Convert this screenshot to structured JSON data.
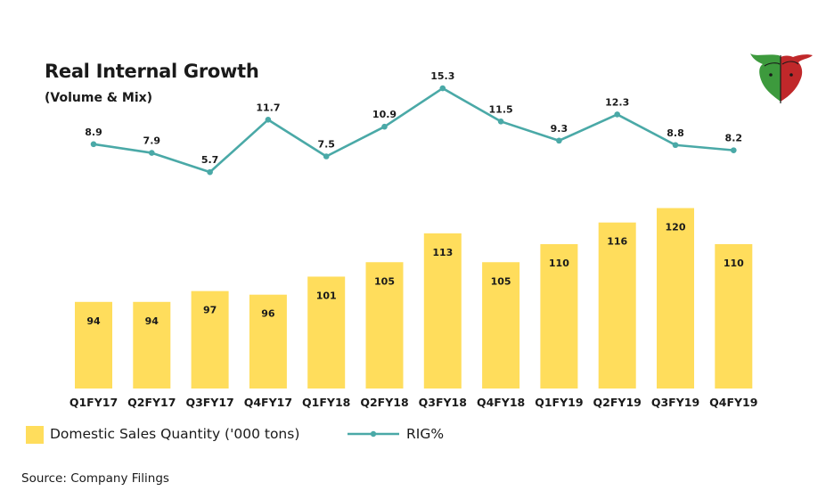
{
  "header": {
    "title": "Real Internal Growth",
    "subtitle": "(Volume & Mix)"
  },
  "legend": {
    "bar_label": "Domestic Sales Quantity ('000 tons)",
    "line_label": "RIG%"
  },
  "source": "Source: Company Filings",
  "logo": {
    "icon": "bull-bear-logo-icon"
  },
  "colors": {
    "bar": "#FFDD5C",
    "line": "#4AA9A7",
    "text": "#1a1a1a",
    "logo_green": "#3D9A3D",
    "logo_red": "#C0282A"
  },
  "chart_data": {
    "type": "bar+line",
    "categories": [
      "Q1FY17",
      "Q2FY17",
      "Q3FY17",
      "Q4FY17",
      "Q1FY18",
      "Q2FY18",
      "Q3FY18",
      "Q4FY18",
      "Q1FY19",
      "Q2FY19",
      "Q3FY19",
      "Q4FY19"
    ],
    "series": [
      {
        "name": "Domestic Sales Quantity ('000 tons)",
        "type": "bar",
        "values": [
          94,
          94,
          97,
          96,
          101,
          105,
          113,
          105,
          110,
          116,
          120,
          110
        ]
      },
      {
        "name": "RIG%",
        "type": "line",
        "values": [
          8.9,
          7.9,
          5.7,
          11.7,
          7.5,
          10.9,
          15.3,
          11.5,
          9.3,
          12.3,
          8.8,
          8.2
        ]
      }
    ],
    "data_labels": true,
    "grid": false,
    "legend_position": "bottom-left"
  }
}
